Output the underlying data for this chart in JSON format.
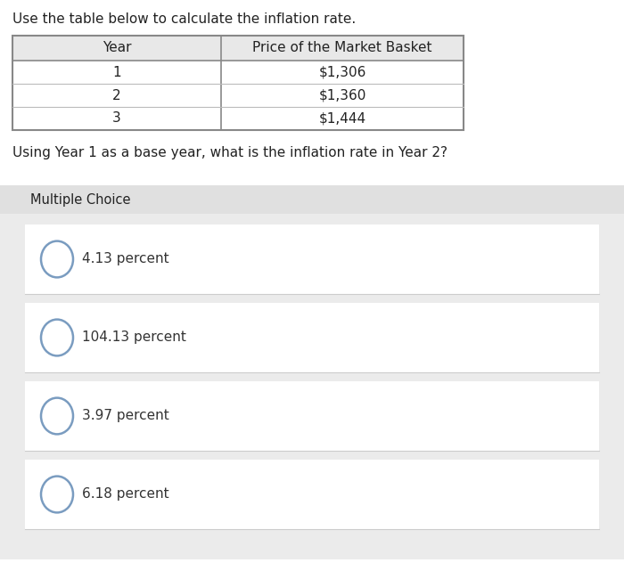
{
  "title": "Use the table below to calculate the inflation rate.",
  "table_headers": [
    "Year",
    "Price of the Market Basket"
  ],
  "table_rows": [
    [
      "1",
      "$1,306"
    ],
    [
      "2",
      "$1,360"
    ],
    [
      "3",
      "$1,444"
    ]
  ],
  "question": "Using Year 1 as a base year, what is the inflation rate in Year 2?",
  "section_label": "Multiple Choice",
  "choices": [
    "4.13 percent",
    "104.13 percent",
    "3.97 percent",
    "6.18 percent"
  ],
  "bg_color": "#ffffff",
  "table_border_color": "#888888",
  "table_header_bg": "#e8e8e8",
  "mc_bg_color": "#ebebeb",
  "choice_bg_color": "#f8f8f8",
  "choice_separator_color": "#cccccc",
  "text_color": "#222222",
  "choice_text_color": "#333333",
  "circle_color": "#7a9cc0",
  "title_fontsize": 11,
  "table_fontsize": 11,
  "question_fontsize": 11,
  "mc_label_fontsize": 10.5,
  "choice_fontsize": 11
}
